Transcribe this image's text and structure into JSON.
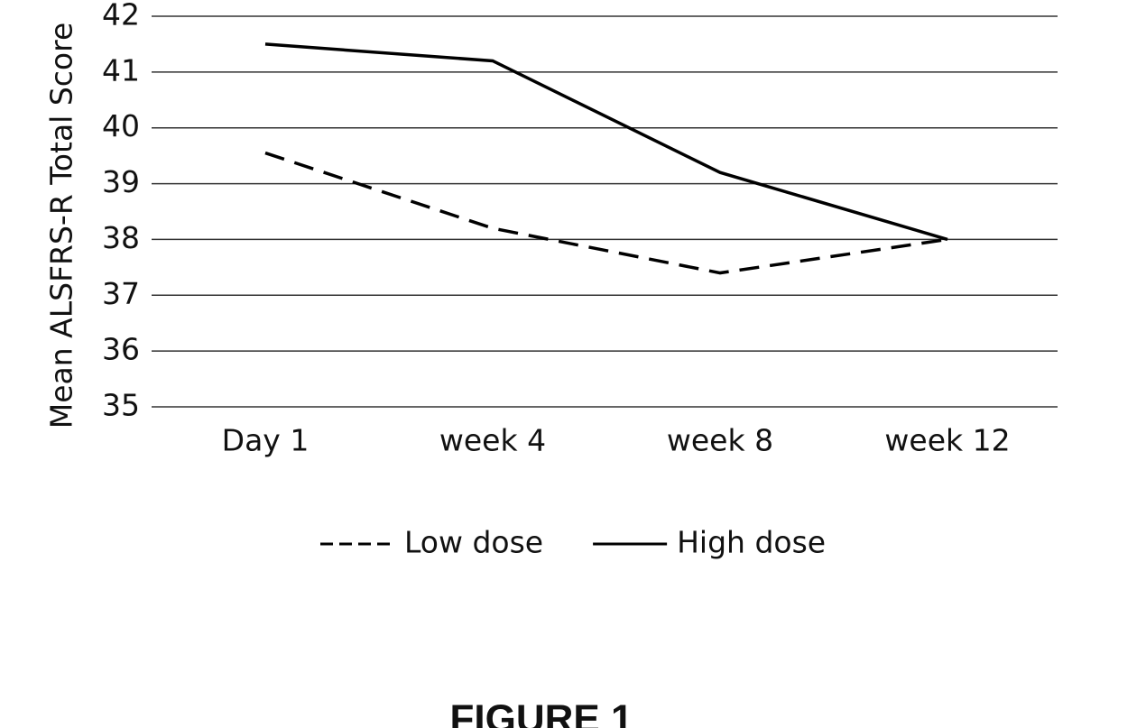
{
  "chart_data": {
    "type": "line",
    "y_label": "Mean ALSFRS-R Total Score",
    "categories": [
      "Day 1",
      "week 4",
      "week 8",
      "week 12"
    ],
    "series": [
      {
        "name": "Low dose",
        "color": "#000000",
        "style": "dashed",
        "values": [
          39.55,
          38.2,
          37.4,
          38.0
        ]
      },
      {
        "name": "High dose",
        "color": "#000000",
        "style": "solid",
        "values": [
          41.5,
          41.2,
          39.2,
          38.0
        ]
      }
    ],
    "ylim": [
      35,
      42
    ],
    "yticks": [
      35,
      36,
      37,
      38,
      39,
      40,
      41,
      42
    ],
    "grid": true,
    "legend": "bottom"
  },
  "caption": "FIGURE 1"
}
